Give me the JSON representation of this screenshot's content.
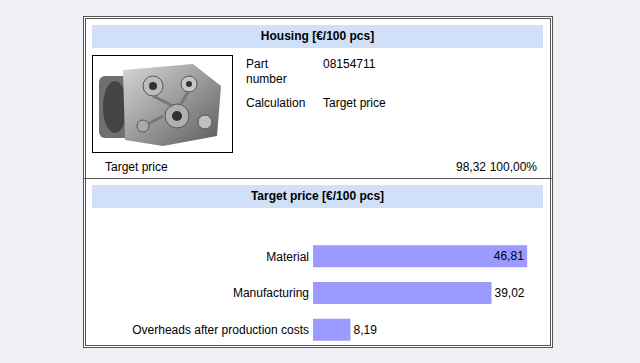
{
  "header": {
    "title": "Housing [€/100 pcs]",
    "fields": [
      {
        "label": "Part number",
        "value": "08154711"
      },
      {
        "label": "Calculation",
        "value": "Target price"
      }
    ],
    "total": {
      "label": "Target price",
      "value": "98,32",
      "share": "100,00%"
    }
  },
  "chart_data": {
    "type": "bar",
    "title": "Target price [€/100 pcs]",
    "orientation": "horizontal",
    "categories": [
      "Material",
      "Manufacturing",
      "Overheads after production costs"
    ],
    "values": [
      46.81,
      39.02,
      8.19
    ],
    "value_labels": [
      "46,81",
      "39,02",
      "8,19"
    ],
    "color": "#9b9bff",
    "xlim": [
      0,
      47
    ],
    "xticks": [],
    "tick_labels": "y",
    "data_labels": true,
    "grid": false
  }
}
